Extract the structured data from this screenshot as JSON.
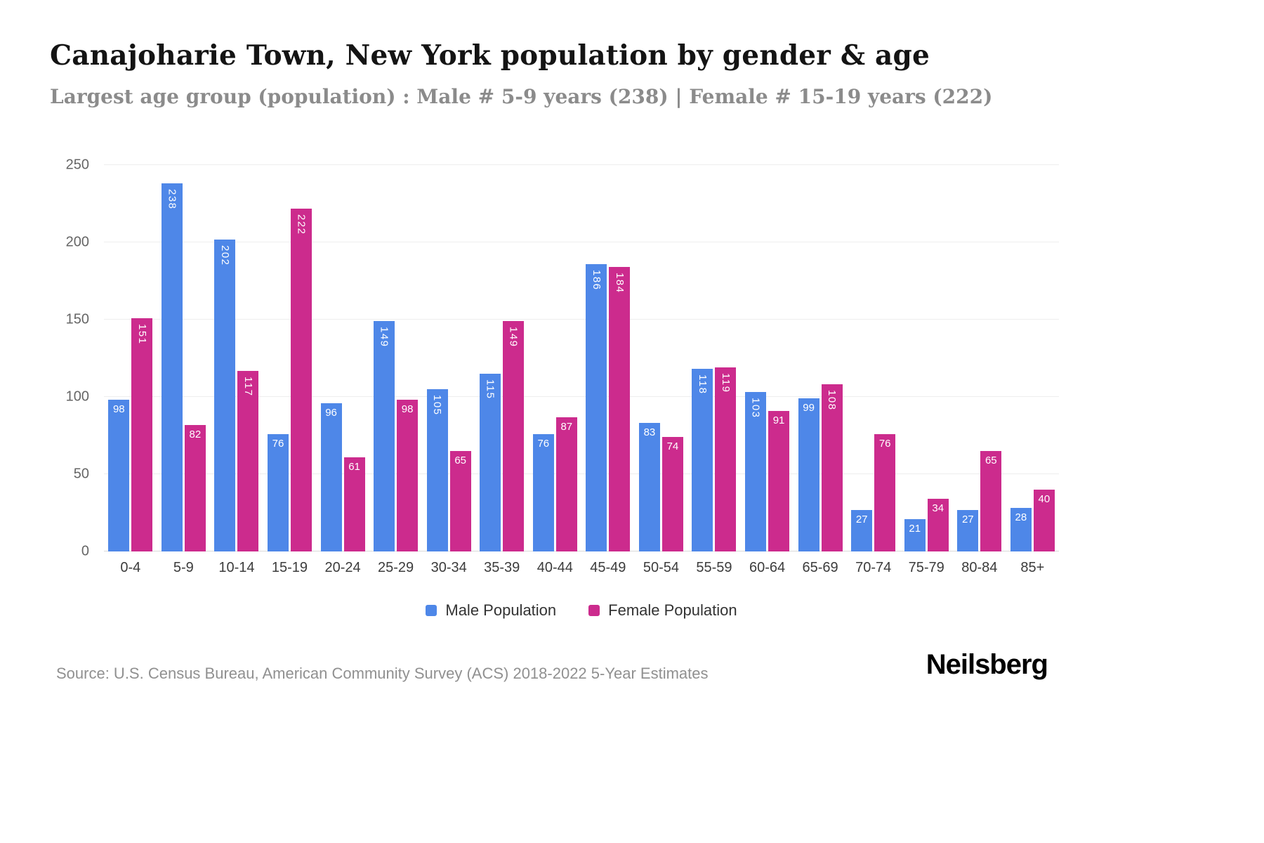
{
  "header": {
    "title": "Canajoharie Town, New York population by gender & age",
    "subtitle": "Largest age group (population) : Male # 5-9 years (238) | Female # 15-19 years (222)"
  },
  "legend": [
    {
      "label": "Male Population",
      "color": "#4E87E8"
    },
    {
      "label": "Female Population",
      "color": "#CC2B8D"
    }
  ],
  "chart_data": {
    "type": "bar",
    "title": "Canajoharie Town, New York population by gender & age",
    "xlabel": "",
    "ylabel": "",
    "categories": [
      "0-4",
      "5-9",
      "10-14",
      "15-19",
      "20-24",
      "25-29",
      "30-34",
      "35-39",
      "40-44",
      "45-49",
      "50-54",
      "55-59",
      "60-64",
      "65-69",
      "70-74",
      "75-79",
      "80-84",
      "85+"
    ],
    "series": [
      {
        "name": "Male Population",
        "color": "#4E87E8",
        "values": [
          98,
          238,
          202,
          76,
          96,
          149,
          105,
          115,
          76,
          186,
          83,
          118,
          103,
          99,
          27,
          21,
          27,
          28
        ]
      },
      {
        "name": "Female Population",
        "color": "#CC2B8D",
        "values": [
          151,
          82,
          117,
          222,
          61,
          98,
          65,
          149,
          87,
          184,
          74,
          119,
          91,
          108,
          76,
          34,
          65,
          40
        ]
      }
    ],
    "ylim": [
      0,
      250
    ],
    "yticks": [
      0,
      50,
      100,
      150,
      200,
      250
    ],
    "grid": true,
    "legend_position": "bottom",
    "bar_value_labels": "inside-top, white"
  },
  "footer": {
    "source": "Source: U.S. Census Bureau, American Community Survey (ACS) 2018-2022 5-Year Estimates",
    "brand": "Neilsberg"
  }
}
